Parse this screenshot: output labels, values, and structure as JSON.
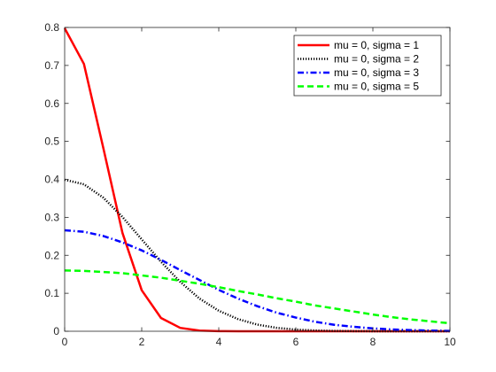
{
  "chart_data": {
    "type": "line",
    "title": "",
    "xlabel": "",
    "ylabel": "",
    "xlim": [
      0,
      10
    ],
    "ylim": [
      0,
      0.8
    ],
    "x_ticks": [
      "0",
      "2",
      "4",
      "6",
      "8",
      "10"
    ],
    "y_ticks": [
      "0",
      "0.1",
      "0.2",
      "0.3",
      "0.4",
      "0.5",
      "0.6",
      "0.7",
      "0.8"
    ],
    "grid": false,
    "legend_position": "top-right",
    "x": [
      0,
      0.5,
      1,
      1.5,
      2,
      2.5,
      3,
      3.5,
      4,
      4.5,
      5,
      5.5,
      6,
      6.5,
      7,
      7.5,
      8,
      8.5,
      9,
      9.5,
      10
    ],
    "series": [
      {
        "name": "mu = 0, sigma = 1",
        "color": "#ff0000",
        "style": "solid",
        "values": [
          0.798,
          0.704,
          0.484,
          0.259,
          0.108,
          0.035,
          0.0089,
          0.0017,
          0.0003,
          0.0,
          0.0,
          0.0,
          0.0,
          0.0,
          0.0,
          0.0,
          0.0,
          0.0,
          0.0,
          0.0,
          0.0
        ]
      },
      {
        "name": "mu = 0, sigma = 2",
        "color": "#000000",
        "style": "dotted",
        "values": [
          0.399,
          0.387,
          0.352,
          0.301,
          0.242,
          0.183,
          0.13,
          0.086,
          0.054,
          0.032,
          0.0175,
          0.009,
          0.0044,
          0.002,
          0.0009,
          0.0004,
          0.0001,
          0.0,
          0.0,
          0.0,
          0.0
        ]
      },
      {
        "name": "mu = 0, sigma = 3",
        "color": "#0000ff",
        "style": "dashdot",
        "values": [
          0.266,
          0.262,
          0.251,
          0.234,
          0.213,
          0.188,
          0.161,
          0.135,
          0.109,
          0.086,
          0.066,
          0.049,
          0.036,
          0.025,
          0.017,
          0.0117,
          0.0076,
          0.0048,
          0.003,
          0.0018,
          0.001
        ]
      },
      {
        "name": "mu = 0, sigma = 5",
        "color": "#00ff00",
        "style": "dashed",
        "values": [
          0.16,
          0.159,
          0.156,
          0.153,
          0.147,
          0.141,
          0.133,
          0.125,
          0.116,
          0.106,
          0.097,
          0.087,
          0.078,
          0.068,
          0.06,
          0.052,
          0.044,
          0.037,
          0.031,
          0.026,
          0.021
        ]
      }
    ]
  }
}
